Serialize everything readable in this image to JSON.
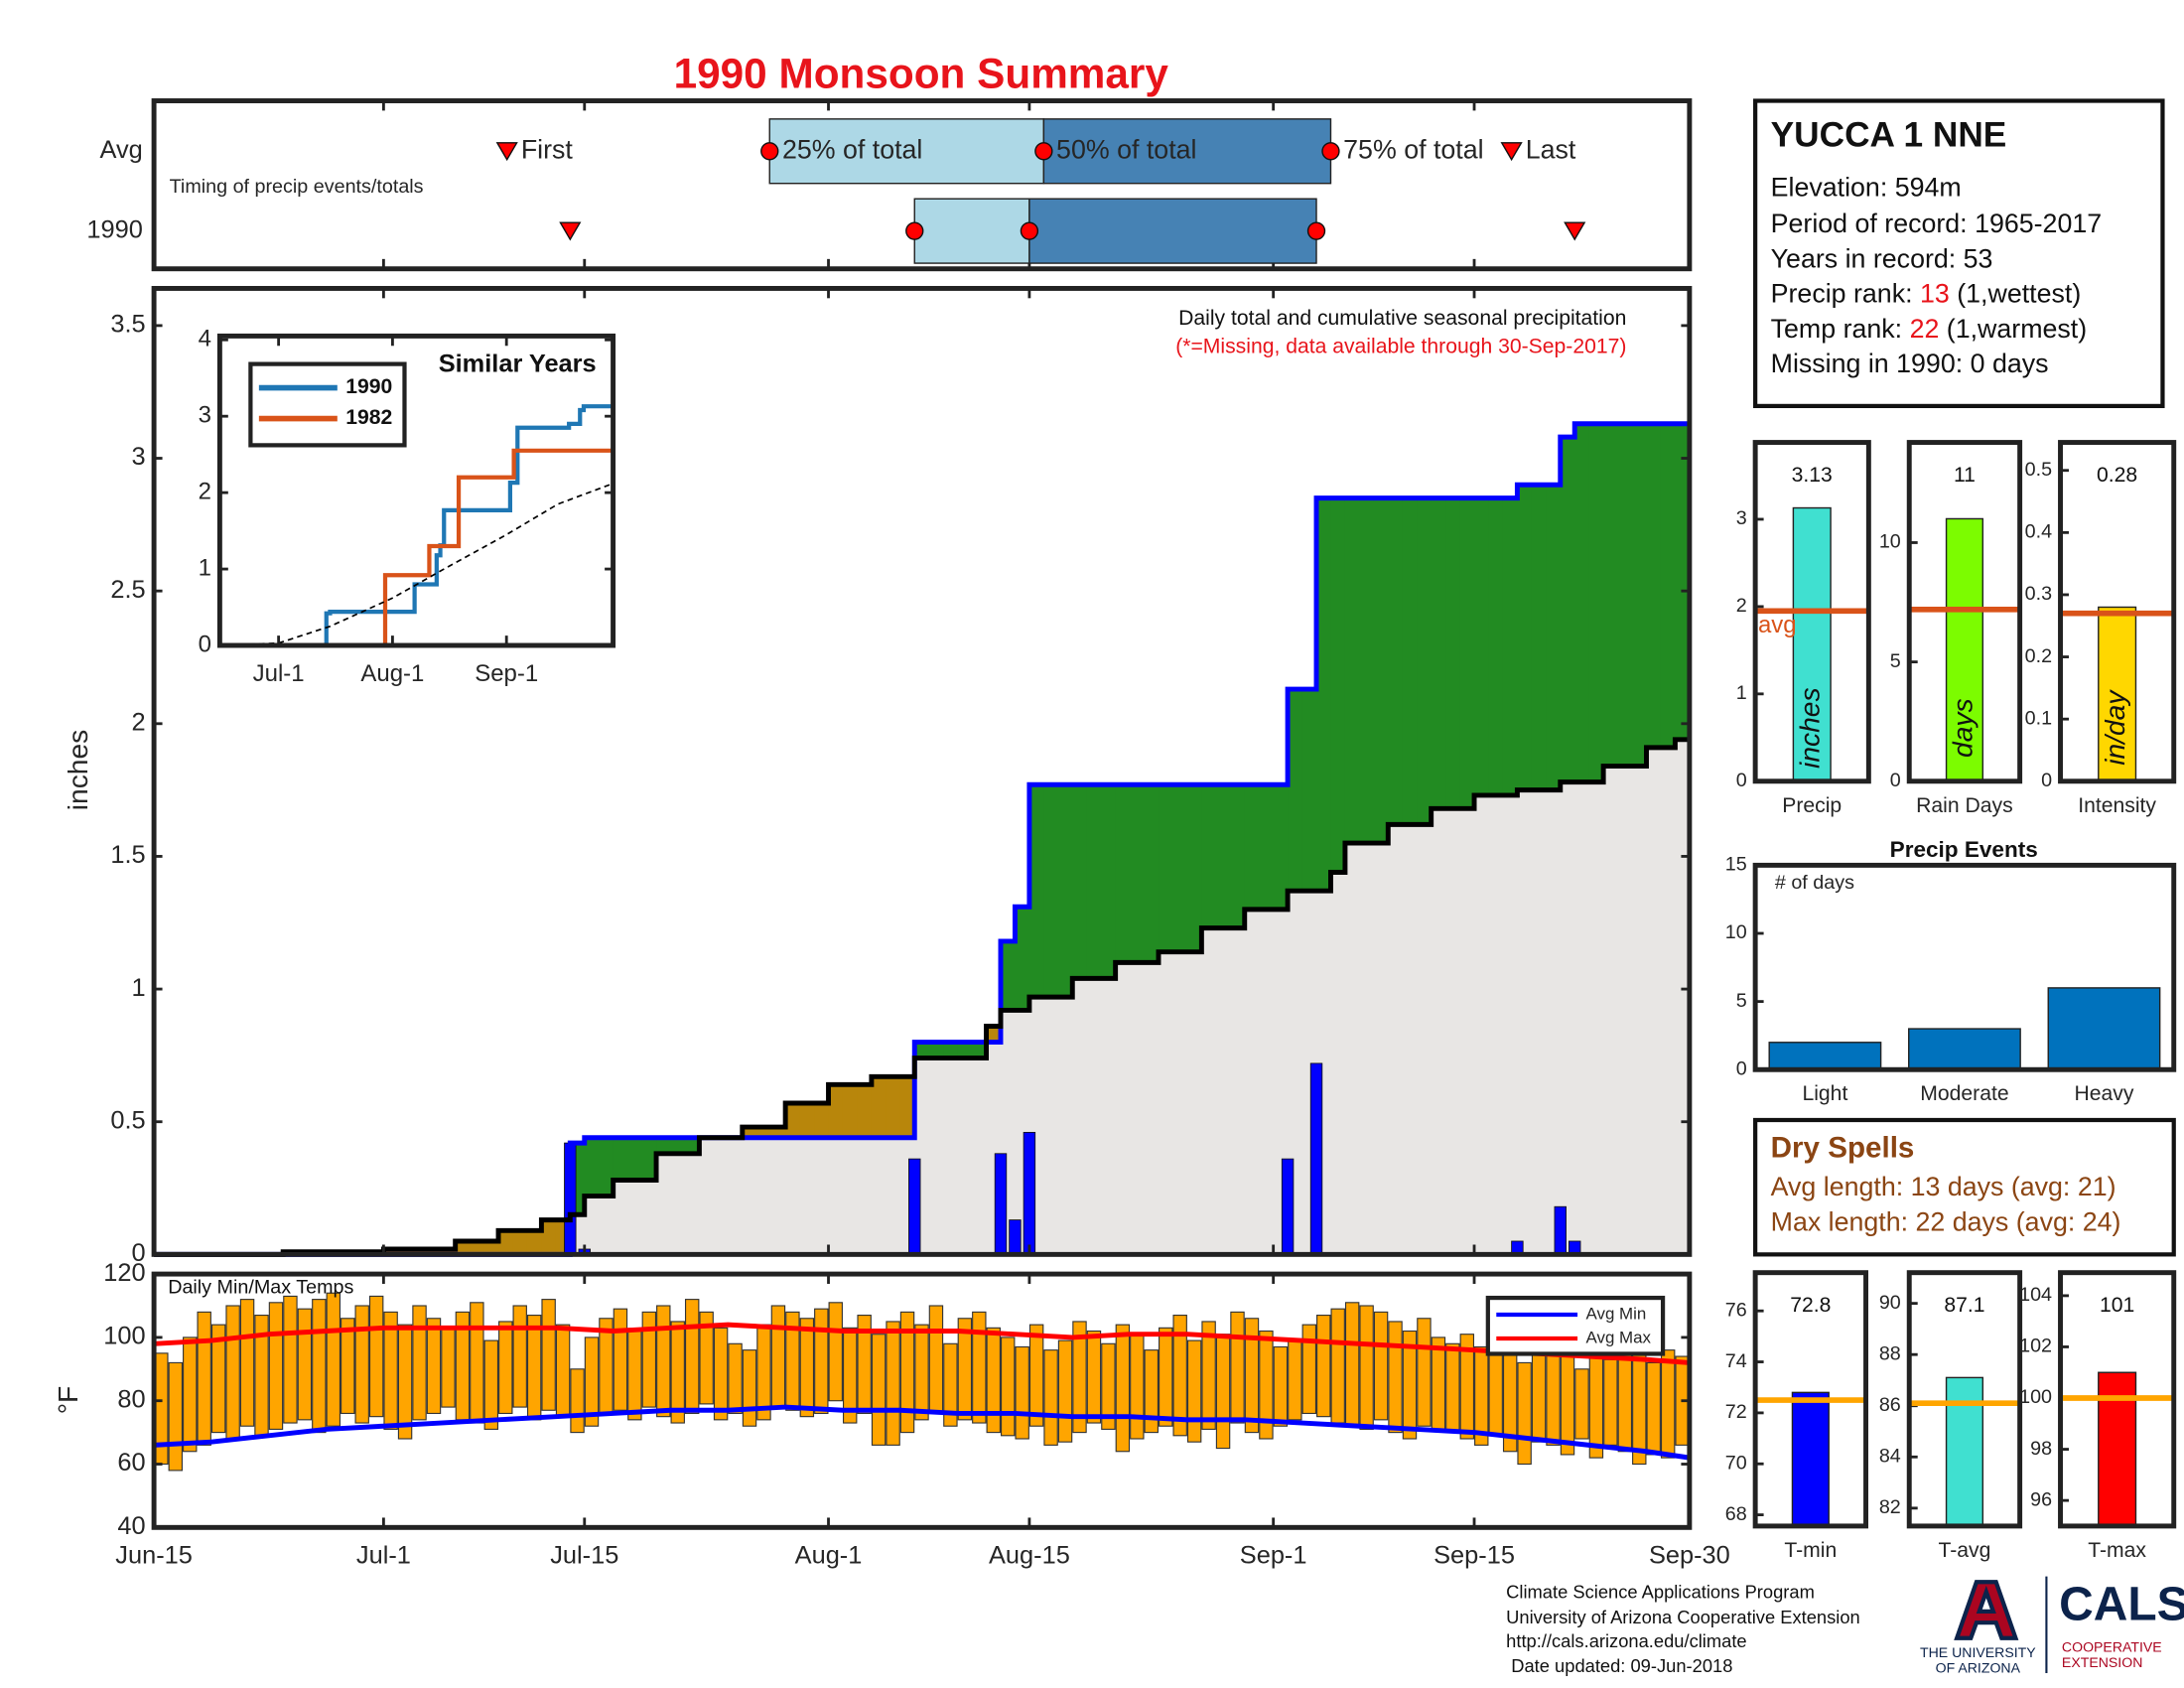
{
  "title": "1990 Monsoon Summary",
  "station": {
    "name": "YUCCA 1 NNE",
    "elevation": "Elevation: 594m",
    "period": "Period of record: 1965-2017",
    "years": "Years in record: 53",
    "precip_rank": [
      "Precip rank: ",
      "13",
      " (1,wettest)"
    ],
    "temp_rank": [
      "Temp rank: ",
      "22",
      " (1,warmest)"
    ],
    "missing": "Missing in 1990: 0 days"
  },
  "dry_spells": {
    "title": "Dry Spells",
    "avg": "Avg length: 13 days (avg: 21)",
    "max": "Max length: 22 days (avg: 24)"
  },
  "footer": [
    "Climate Science Applications Program",
    "University of Arizona Cooperative Extension",
    "http://cals.arizona.edu/climate",
    " Date updated: 09-Jun-2018"
  ],
  "logo": {
    "university": [
      "THE UNIVERSITY",
      "OF ARIZONA"
    ],
    "cals": "CALS",
    "extension": [
      "COOPERATIVE",
      "EXTENSION"
    ]
  },
  "chart_data": [
    {
      "type": "timing",
      "note": "Timing of precip events/totals",
      "labels": {
        "first": "First",
        "q25": "25% of total",
        "q50": "50% of total",
        "q75": "75% of total",
        "last": "Last"
      },
      "rows": [
        {
          "name": "Avg",
          "first": 24.6,
          "q25": 42.9,
          "q50": 62,
          "q75": 82,
          "last": 94.6
        },
        {
          "name": "1990",
          "first": 29,
          "q25": 53,
          "q50": 61,
          "q75": 81,
          "last": 99
        }
      ],
      "light_color": "#add8e6",
      "dark_color": "#4682b4",
      "marker_color": "#ff0000",
      "xlim": [
        0,
        107
      ],
      "xticks": [
        0,
        16,
        30,
        47,
        61,
        78,
        92,
        107
      ]
    },
    {
      "type": "step",
      "title": "Daily total and cumulative seasonal precipitation",
      "subtitle": "(*=Missing, data available through 30-Sep-2017)",
      "ylabel": "inches",
      "series": [
        {
          "color": "#0000ff",
          "x": [
            0,
            29,
            30,
            53,
            59,
            60,
            61,
            79,
            81,
            95,
            98,
            99
          ],
          "values": [
            0,
            0.42,
            0.44,
            0.8,
            1.18,
            1.31,
            1.77,
            2.13,
            2.85,
            2.9,
            3.08,
            3.13
          ]
        },
        {
          "color": "#000000",
          "x": [
            0,
            9,
            16,
            21,
            24,
            27,
            29,
            30,
            32,
            35,
            38,
            41,
            44,
            47,
            50,
            53,
            58,
            59,
            61,
            64,
            67,
            70,
            73,
            76,
            79,
            82,
            83,
            86,
            89,
            92,
            95,
            98,
            101,
            104,
            106
          ],
          "values": [
            0,
            0.01,
            0.02,
            0.05,
            0.09,
            0.13,
            0.15,
            0.22,
            0.28,
            0.38,
            0.44,
            0.48,
            0.57,
            0.64,
            0.67,
            0.74,
            0.86,
            0.92,
            0.97,
            1.04,
            1.1,
            1.14,
            1.23,
            1.3,
            1.37,
            1.44,
            1.55,
            1.62,
            1.68,
            1.73,
            1.75,
            1.78,
            1.84,
            1.91,
            1.94
          ]
        }
      ],
      "daily": {
        "color": "#0000ff",
        "x": [
          29,
          30,
          53,
          59,
          60,
          61,
          79,
          81,
          95,
          98,
          99
        ],
        "values": [
          0.42,
          0.02,
          0.36,
          0.38,
          0.13,
          0.46,
          0.36,
          0.72,
          0.05,
          0.18,
          0.05
        ]
      },
      "fill_base": "#e8e6e4",
      "fill_above": "#228b22",
      "fill_below": "#b8860b",
      "xlim": [
        0,
        107
      ],
      "xticks": [
        0,
        16,
        30,
        47,
        61,
        78,
        92,
        107
      ],
      "ylim": [
        0,
        3.64
      ],
      "yticks": [
        0,
        0.5,
        1,
        1.5,
        2,
        2.5,
        3,
        3.5
      ]
    },
    {
      "type": "step",
      "title": "Similar Years",
      "legend": "upper left",
      "series": [
        {
          "name": "1990",
          "color": "#1f77b4",
          "x": [
            0,
            29,
            30,
            53,
            59,
            60,
            61,
            79,
            81,
            95,
            98,
            99
          ],
          "values": [
            0,
            0.42,
            0.44,
            0.8,
            1.18,
            1.31,
            1.77,
            2.13,
            2.85,
            2.9,
            3.08,
            3.13
          ]
        },
        {
          "name": "1982",
          "color": "#d95319",
          "x": [
            0,
            45,
            54,
            57,
            65,
            73,
            80,
            107
          ],
          "values": [
            0,
            0.92,
            0.92,
            1.3,
            2.2,
            2.2,
            2.55,
            2.65
          ]
        },
        {
          "color": "#000000",
          "style": "dashed",
          "x": [
            0,
            16,
            30,
            47,
            61,
            78,
            92,
            107
          ],
          "values": [
            0,
            0.03,
            0.25,
            0.62,
            1.0,
            1.45,
            1.85,
            2.12
          ]
        }
      ],
      "xlim": [
        0,
        107
      ],
      "xticks": [
        {
          "value": 16,
          "label": "Jul-1"
        },
        {
          "value": 47,
          "label": "Aug-1"
        },
        {
          "value": 78,
          "label": "Sep-1"
        }
      ],
      "ylim": [
        0,
        4.05
      ],
      "yticks": [
        0,
        1,
        2,
        3,
        4
      ]
    },
    {
      "type": "range",
      "title": "Daily Min/Max Temps",
      "ylabel": "°F",
      "bar_color": "#ffa500",
      "legend": "upper right",
      "max": [
        95,
        92,
        100,
        108,
        104,
        110,
        112,
        107,
        111,
        113,
        109,
        112,
        114,
        106,
        110,
        113,
        108,
        104,
        110,
        106,
        103,
        108,
        111,
        99,
        105,
        110,
        107,
        112,
        104,
        90,
        100,
        106,
        109,
        102,
        108,
        110,
        105,
        112,
        108,
        103,
        98,
        96,
        104,
        110,
        108,
        106,
        109,
        111,
        103,
        107,
        101,
        105,
        108,
        104,
        110,
        98,
        106,
        108,
        103,
        100,
        97,
        104,
        96,
        99,
        105,
        102,
        98,
        104,
        101,
        96,
        103,
        107,
        99,
        105,
        101,
        108,
        106,
        102,
        97,
        99,
        104,
        107,
        109,
        111,
        110,
        108,
        105,
        102,
        106,
        100,
        98,
        101,
        97,
        103,
        95,
        92,
        99,
        96,
        94,
        90,
        97,
        93,
        98,
        95,
        92,
        96,
        94
      ],
      "min": [
        60,
        58,
        64,
        66,
        70,
        68,
        72,
        69,
        71,
        73,
        74,
        70,
        72,
        76,
        73,
        75,
        71,
        68,
        74,
        76,
        78,
        74,
        73,
        71,
        76,
        78,
        74,
        77,
        75,
        70,
        72,
        76,
        77,
        74,
        78,
        75,
        73,
        76,
        79,
        74,
        76,
        72,
        74,
        78,
        77,
        75,
        76,
        80,
        73,
        76,
        66,
        66,
        70,
        74,
        76,
        72,
        74,
        73,
        70,
        69,
        68,
        72,
        66,
        67,
        70,
        73,
        71,
        64,
        68,
        70,
        72,
        69,
        67,
        71,
        65,
        73,
        70,
        68,
        72,
        74,
        76,
        75,
        73,
        72,
        71,
        74,
        70,
        68,
        72,
        71,
        70,
        68,
        66,
        69,
        64,
        60,
        67,
        66,
        63,
        68,
        62,
        66,
        64,
        60,
        63,
        62,
        66
      ],
      "series": [
        {
          "name": "Avg Min",
          "color": "#0000ff",
          "x": [
            0,
            4,
            8,
            12,
            16,
            20,
            24,
            28,
            32,
            36,
            40,
            44,
            48,
            52,
            56,
            60,
            64,
            68,
            72,
            76,
            80,
            84,
            88,
            92,
            96,
            100,
            104,
            107
          ],
          "values": [
            66,
            67,
            69,
            71,
            72,
            73,
            74,
            75,
            76,
            77,
            77,
            78,
            77,
            77,
            76,
            76,
            75,
            75,
            74,
            74,
            73,
            72,
            71,
            70,
            68,
            66,
            64,
            62
          ]
        },
        {
          "name": "Avg Max",
          "color": "#ff0000",
          "x": [
            0,
            4,
            8,
            12,
            16,
            20,
            24,
            28,
            32,
            36,
            40,
            44,
            48,
            52,
            56,
            60,
            64,
            68,
            72,
            76,
            80,
            84,
            88,
            92,
            96,
            100,
            104,
            107
          ],
          "values": [
            98,
            99,
            101,
            102,
            103,
            103,
            103,
            103,
            102,
            103,
            104,
            103,
            102,
            102,
            102,
            101,
            100,
            101,
            101,
            100,
            99,
            98,
            97,
            96,
            95,
            94,
            93,
            92
          ]
        }
      ],
      "xlim": [
        0,
        107
      ],
      "xticks": [
        {
          "value": 0,
          "label": "Jun-15"
        },
        {
          "value": 16,
          "label": "Jul-1"
        },
        {
          "value": 30,
          "label": "Jul-15"
        },
        {
          "value": 47,
          "label": "Aug-1"
        },
        {
          "value": 61,
          "label": "Aug-15"
        },
        {
          "value": 78,
          "label": "Sep-1"
        },
        {
          "value": 92,
          "label": "Sep-15"
        },
        {
          "value": 107,
          "label": "Sep-30"
        }
      ],
      "ylim": [
        40,
        120
      ],
      "yticks": [
        40,
        60,
        80,
        100,
        120
      ]
    },
    {
      "type": "bar",
      "categories": [
        "Precip"
      ],
      "values": [
        3.13
      ],
      "color": "#40e0d0",
      "unit": "inches",
      "avg": 1.95,
      "avg_label": "avg",
      "avg_color": "#d95319",
      "ylim": [
        0,
        3.88
      ],
      "yticks": [
        0,
        1,
        2,
        3
      ]
    },
    {
      "type": "bar",
      "categories": [
        "Rain Days"
      ],
      "values": [
        11
      ],
      "color": "#7cfc00",
      "unit": "days",
      "avg": 7.2,
      "avg_color": "#d95319",
      "ylim": [
        0,
        14.2
      ],
      "yticks": [
        0,
        5,
        10
      ]
    },
    {
      "type": "bar",
      "categories": [
        "Intensity"
      ],
      "values": [
        0.28
      ],
      "color": "#ffd700",
      "unit": "in/day",
      "avg": 0.27,
      "avg_color": "#d95319",
      "ylim": [
        0,
        0.545
      ],
      "yticks": [
        0,
        0.1,
        0.2,
        0.3,
        0.4,
        0.5
      ]
    },
    {
      "type": "bar",
      "title": "Precip Events",
      "ylabel": "# of days",
      "categories": [
        "Light",
        "Moderate",
        "Heavy"
      ],
      "values": [
        2,
        3,
        6
      ],
      "color": "#0072bd",
      "ylim": [
        0,
        15
      ],
      "yticks": [
        0,
        5,
        10,
        15
      ]
    },
    {
      "type": "bar",
      "categories": [
        "T-min"
      ],
      "values": [
        72.8
      ],
      "color": "#0000ff",
      "avg": 72.5,
      "avg_color": "#ffa500",
      "ylim": [
        67.56,
        77.5
      ],
      "yticks": [
        68,
        70,
        72,
        74,
        76
      ]
    },
    {
      "type": "bar",
      "categories": [
        "T-avg"
      ],
      "values": [
        87.1
      ],
      "color": "#40e0d0",
      "avg": 86.1,
      "avg_color": "#ffa500",
      "ylim": [
        81.3,
        91.2
      ],
      "yticks": [
        82,
        84,
        86,
        88,
        90
      ]
    },
    {
      "type": "bar",
      "categories": [
        "T-max"
      ],
      "values": [
        101
      ],
      "color": "#ff0000",
      "avg": 100,
      "avg_color": "#ffa500",
      "ylim": [
        95,
        104.9
      ],
      "yticks": [
        96,
        98,
        100,
        102,
        104
      ]
    }
  ]
}
